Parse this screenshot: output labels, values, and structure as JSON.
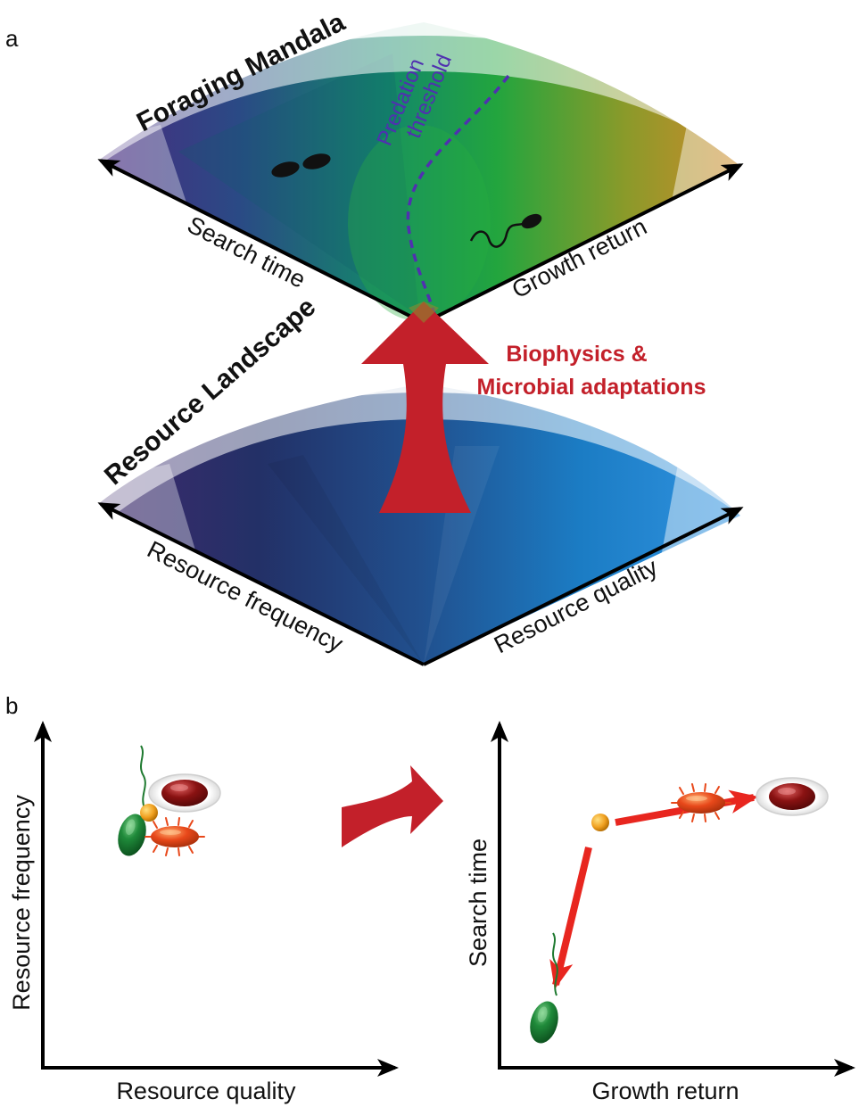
{
  "panel_a": {
    "letter": "a",
    "foraging_plane": {
      "title": "Foraging Mandala",
      "left_axis": "Search time",
      "right_axis": "Growth return",
      "threshold_line1": "Predation",
      "threshold_line2": "threshold"
    },
    "transform_label_line1": "Biophysics &",
    "transform_label_line2": "Microbial adaptations",
    "resource_plane": {
      "title": "Resource Landscape",
      "left_axis": "Resource frequency",
      "right_axis": "Resource quality"
    }
  },
  "panel_b": {
    "letter": "b",
    "left_plot": {
      "xlabel": "Resource quality",
      "ylabel": "Resource frequency"
    },
    "right_plot": {
      "xlabel": "Growth return",
      "ylabel": "Search time"
    }
  },
  "colors": {
    "arrow_red": "#c3202a",
    "bright_red": "#e8261f",
    "threshold": "#5030b0",
    "green_cell": "#1f8a3a",
    "orange_cell": "#e8481a",
    "dark_red_cell": "#8a1212",
    "yellow_particle": "#f0a020"
  },
  "icons": [
    "black-cell-icon",
    "flagellated-cell-icon",
    "green-flagellated-cell-icon",
    "orange-spiky-cell-icon",
    "dark-red-cell-icon",
    "yellow-particle-icon"
  ]
}
